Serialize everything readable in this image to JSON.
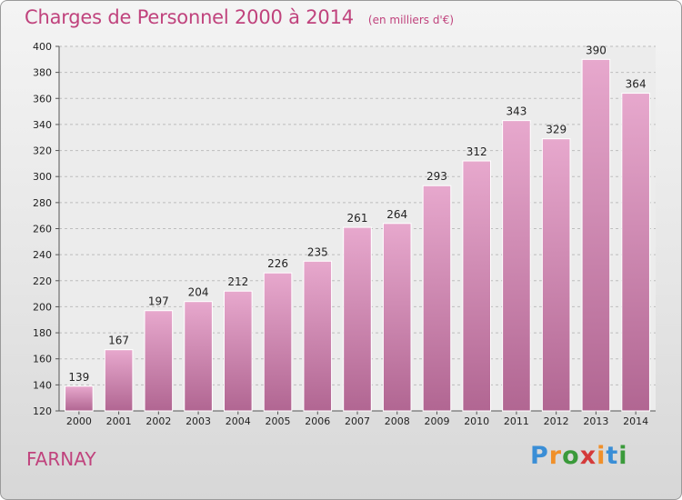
{
  "chart_data": {
    "type": "bar",
    "title": "Charges de Personnel 2000 à 2014",
    "subtitle": "(en milliers d'€)",
    "categories": [
      "2000",
      "2001",
      "2002",
      "2003",
      "2004",
      "2005",
      "2006",
      "2007",
      "2008",
      "2009",
      "2010",
      "2011",
      "2012",
      "2013",
      "2014"
    ],
    "values": [
      139,
      167,
      197,
      204,
      212,
      226,
      235,
      261,
      264,
      293,
      312,
      343,
      329,
      390,
      364
    ],
    "ylim": [
      120,
      400
    ],
    "yticks": [
      120,
      140,
      160,
      180,
      200,
      220,
      240,
      260,
      280,
      300,
      320,
      340,
      360,
      380,
      400
    ],
    "grid": true,
    "bar_color": "#c46e9f"
  },
  "footer": {
    "commune": "FARNAY",
    "logo_letters": [
      "P",
      "r",
      "o",
      "x",
      "i",
      "t",
      "i"
    ],
    "logo_colors": [
      "#3a8ed6",
      "#f0902a",
      "#3a9a3a",
      "#d43a3a",
      "#f0902a",
      "#3a8ed6",
      "#3a9a3a"
    ]
  }
}
